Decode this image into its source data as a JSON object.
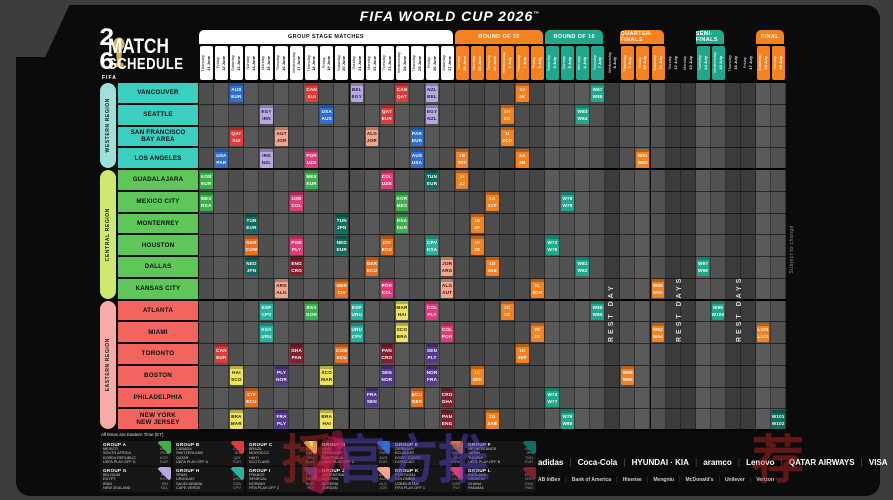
{
  "title": "FIFA WORLD CUP 2026",
  "title_tm": "™",
  "logo": {
    "digit_top": "2",
    "digit_bottom": "6",
    "fifa": "FIFA",
    "line1": "MATCH",
    "line2": "SCHEDULE"
  },
  "notes": {
    "times": "All times are Eastern Time (ET)",
    "subject": "Subject to change",
    "watermark_red": "播",
    "watermark_blue": "官方推",
    "watermark_red2": "荐"
  },
  "bands": [
    {
      "label": "GROUP STAGE MATCHES",
      "c0": 0,
      "c1": 16,
      "bg": "#ffffff",
      "fg": "#111111"
    },
    {
      "label": "ROUND OF 32",
      "c0": 17,
      "c1": 22,
      "bg": "#f5821f",
      "fg": "#ffffff"
    },
    {
      "label": "ROUND OF 16",
      "c0": 23,
      "c1": 26,
      "bg": "#1fa88c",
      "fg": "#ffffff"
    },
    {
      "label": "QUARTER-FINALS",
      "c0": 28,
      "c1": 30,
      "bg": "#f5821f",
      "fg": "#ffffff"
    },
    {
      "label": "SEMI-FINALS",
      "c0": 33,
      "c1": 34,
      "bg": "#1fa88c",
      "fg": "#ffffff"
    },
    {
      "label": "FINAL",
      "c0": 37,
      "c1": 38,
      "bg": "#f5821f",
      "fg": "#ffffff"
    }
  ],
  "columns": [
    {
      "day": "Thursday",
      "date": "11 June",
      "s": "GS"
    },
    {
      "day": "Friday",
      "date": "12 June",
      "s": "GS"
    },
    {
      "day": "Saturday",
      "date": "13 June",
      "s": "GS"
    },
    {
      "day": "Sunday",
      "date": "14 June",
      "s": "GS"
    },
    {
      "day": "Monday",
      "date": "15 June",
      "s": "GS"
    },
    {
      "day": "Tuesday",
      "date": "16 June",
      "s": "GS"
    },
    {
      "day": "Wednesday",
      "date": "17 June",
      "s": "GS"
    },
    {
      "day": "Thursday",
      "date": "18 June",
      "s": "GS"
    },
    {
      "day": "Friday",
      "date": "19 June",
      "s": "GS"
    },
    {
      "day": "Saturday",
      "date": "20 June",
      "s": "GS"
    },
    {
      "day": "Sunday",
      "date": "21 June",
      "s": "GS"
    },
    {
      "day": "Monday",
      "date": "22 June",
      "s": "GS"
    },
    {
      "day": "Tuesday",
      "date": "23 June",
      "s": "GS"
    },
    {
      "day": "Wednesday",
      "date": "24 June",
      "s": "GS"
    },
    {
      "day": "Thursday",
      "date": "25 June",
      "s": "GS"
    },
    {
      "day": "Friday",
      "date": "26 June",
      "s": "GS"
    },
    {
      "day": "Saturday",
      "date": "27 June",
      "s": "GS"
    },
    {
      "day": "Sunday",
      "date": "28 June",
      "s": "R32"
    },
    {
      "day": "Monday",
      "date": "29 June",
      "s": "R32"
    },
    {
      "day": "Tuesday",
      "date": "30 June",
      "s": "R32"
    },
    {
      "day": "Wednesday",
      "date": "1 July",
      "s": "R32"
    },
    {
      "day": "Thursday",
      "date": "2 July",
      "s": "R32"
    },
    {
      "day": "Friday",
      "date": "3 July",
      "s": "R32"
    },
    {
      "day": "Saturday",
      "date": "4 July",
      "s": "R16"
    },
    {
      "day": "Sunday",
      "date": "5 July",
      "s": "R16"
    },
    {
      "day": "Monday",
      "date": "6 July",
      "s": "R16"
    },
    {
      "day": "Tuesday",
      "date": "7 July",
      "s": "R16"
    },
    {
      "day": "Wednesday",
      "date": "8 July",
      "s": "REST"
    },
    {
      "day": "Thursday",
      "date": "9 July",
      "s": "QF"
    },
    {
      "day": "Friday",
      "date": "10 July",
      "s": "QF"
    },
    {
      "day": "Saturday",
      "date": "11 July",
      "s": "QF"
    },
    {
      "day": "Sunday",
      "date": "12 July",
      "s": "REST"
    },
    {
      "day": "Monday",
      "date": "13 July",
      "s": "REST"
    },
    {
      "day": "Tuesday",
      "date": "14 July",
      "s": "SF"
    },
    {
      "day": "Wednesday",
      "date": "15 July",
      "s": "SF"
    },
    {
      "day": "Thursday",
      "date": "16 July",
      "s": "REST"
    },
    {
      "day": "Friday",
      "date": "17 July",
      "s": "REST"
    },
    {
      "day": "Saturday",
      "date": "18 July",
      "s": "F"
    },
    {
      "day": "Sunday",
      "date": "19 July",
      "s": "F"
    }
  ],
  "rest_labels": [
    {
      "label": "REST DAY",
      "c0": 27,
      "c1": 27
    },
    {
      "label": "REST DAYS",
      "c0": 31,
      "c1": 32
    },
    {
      "label": "REST DAYS",
      "c0": 35,
      "c1": 36
    }
  ],
  "regions": [
    {
      "name": "WESTERN REGION",
      "tab": "#9fe0d8",
      "row": "#3ccfbf",
      "cities": [
        "VANCOUVER",
        "SEATTLE",
        "SAN FRANCISCO\nBAY AREA",
        "LOS ANGELES"
      ]
    },
    {
      "name": "CENTRAL REGION",
      "tab": "#cfe96e",
      "row": "#5fc75a",
      "cities": [
        "GUADALAJARA",
        "MEXICO CITY",
        "MONTERREY",
        "HOUSTON",
        "DALLAS",
        "KANSAS CITY"
      ]
    },
    {
      "name": "EASTERN REGION",
      "tab": "#f6aca6",
      "row": "#f2645d",
      "cities": [
        "ATLANTA",
        "MIAMI",
        "TORONTO",
        "BOSTON",
        "PHILADELPHIA",
        "NEW YORK\nNEW JERSEY"
      ]
    }
  ],
  "group_colors": {
    "A": [
      "#3cb04d",
      "#ffffff"
    ],
    "B": [
      "#e03a3a",
      "#ffffff"
    ],
    "C": [
      "#efe45e",
      "#26230a"
    ],
    "D": [
      "#2f6fd0",
      "#ffffff"
    ],
    "E": [
      "#e8711f",
      "#ffffff"
    ],
    "F": [
      "#0f6e5f",
      "#ffffff"
    ],
    "G": [
      "#b7a8e0",
      "#241a4a"
    ],
    "H": [
      "#28b3a0",
      "#ffffff"
    ],
    "I": [
      "#53398f",
      "#ffffff"
    ],
    "J": [
      "#f2a58f",
      "#3a1208"
    ],
    "K": [
      "#e23a7a",
      "#ffffff"
    ],
    "L": [
      "#7e2230",
      "#ffffff"
    ]
  },
  "stage_colors": {
    "R32": [
      "#f5821f",
      "#ffffff"
    ],
    "R16": [
      "#1fa88c",
      "#ffffff"
    ],
    "QF": [
      "#f5821f",
      "#ffffff"
    ],
    "SF": [
      "#1fa88c",
      "#ffffff"
    ],
    "F3": [
      "#f5821f",
      "#ffffff"
    ],
    "F": [
      "#c9a227",
      "#1b1402"
    ]
  },
  "matches": [
    [
      0,
      2,
      "D",
      "AUS",
      "EUR"
    ],
    [
      0,
      7,
      "B",
      "CAN",
      "SUI"
    ],
    [
      0,
      10,
      "G",
      "BEL",
      "EGY"
    ],
    [
      0,
      13,
      "B",
      "CAN",
      "QAT"
    ],
    [
      0,
      15,
      "G",
      "NZL",
      "BEL"
    ],
    [
      1,
      4,
      "G",
      "EGY",
      "IRN"
    ],
    [
      1,
      8,
      "D",
      "USA",
      "AUS"
    ],
    [
      1,
      12,
      "B",
      "QAT",
      "EUR"
    ],
    [
      1,
      15,
      "G",
      "EGY",
      "NZL"
    ],
    [
      2,
      2,
      "B",
      "QAT",
      "SUI"
    ],
    [
      2,
      5,
      "J",
      "AUT",
      "JOR"
    ],
    [
      2,
      11,
      "J",
      "ALG",
      "JOR"
    ],
    [
      2,
      14,
      "D",
      "PAR",
      "EUR"
    ],
    [
      3,
      1,
      "D",
      "USA",
      "PAR"
    ],
    [
      3,
      4,
      "G",
      "IRN",
      "NZL"
    ],
    [
      3,
      7,
      "K",
      "POR",
      "UZB"
    ],
    [
      3,
      14,
      "D",
      "AUS",
      "USA"
    ],
    [
      4,
      0,
      "A",
      "KOR",
      "EUR"
    ],
    [
      4,
      7,
      "A",
      "MEX",
      "EUR"
    ],
    [
      4,
      12,
      "K",
      "COL",
      "UZB"
    ],
    [
      4,
      15,
      "F",
      "TUN",
      "EUR"
    ],
    [
      5,
      0,
      "A",
      "MEX",
      "RSA"
    ],
    [
      5,
      6,
      "K",
      "UZB",
      "COL"
    ],
    [
      5,
      13,
      "A",
      "KOR",
      "MEX"
    ],
    [
      6,
      3,
      "F",
      "TUN",
      "EUR"
    ],
    [
      6,
      9,
      "F",
      "TUN",
      "JPN"
    ],
    [
      6,
      13,
      "A",
      "RSA",
      "EUR"
    ],
    [
      7,
      3,
      "E",
      "GER",
      "CUW"
    ],
    [
      7,
      6,
      "K",
      "POR",
      "PLY"
    ],
    [
      7,
      9,
      "F",
      "NED",
      "EUR"
    ],
    [
      7,
      12,
      "E",
      "CIV",
      "ECU"
    ],
    [
      7,
      15,
      "H",
      "CPV",
      "KSA"
    ],
    [
      8,
      3,
      "F",
      "NED",
      "JPN"
    ],
    [
      8,
      6,
      "L",
      "ENG",
      "CRO"
    ],
    [
      8,
      11,
      "E",
      "GER",
      "ECU"
    ],
    [
      8,
      16,
      "J",
      "JOR",
      "ARG"
    ],
    [
      9,
      5,
      "J",
      "ARG",
      "ALG"
    ],
    [
      9,
      9,
      "E",
      "GER",
      "CIV"
    ],
    [
      9,
      12,
      "K",
      "POR",
      "COL"
    ],
    [
      9,
      16,
      "J",
      "ALG",
      "AUT"
    ],
    [
      10,
      4,
      "H",
      "ESP",
      "CPV"
    ],
    [
      10,
      7,
      "A",
      "RSA",
      "KOR"
    ],
    [
      10,
      10,
      "H",
      "ESP",
      "URU"
    ],
    [
      10,
      13,
      "C",
      "MAR",
      "HAI"
    ],
    [
      10,
      15,
      "K",
      "COL",
      "PLY"
    ],
    [
      11,
      4,
      "H",
      "KSA",
      "URU"
    ],
    [
      11,
      10,
      "H",
      "URU",
      "CPV"
    ],
    [
      11,
      13,
      "C",
      "SCO",
      "BRA"
    ],
    [
      11,
      16,
      "K",
      "COL",
      "POR"
    ],
    [
      12,
      1,
      "B",
      "CAN",
      "EUR"
    ],
    [
      12,
      6,
      "L",
      "GHA",
      "PAN"
    ],
    [
      12,
      9,
      "E",
      "CUW",
      "ECU"
    ],
    [
      12,
      12,
      "L",
      "PAN",
      "CRO"
    ],
    [
      12,
      15,
      "I",
      "SEN",
      "PLY"
    ],
    [
      13,
      2,
      "C",
      "HAI",
      "SCO"
    ],
    [
      13,
      5,
      "I",
      "PLY",
      "NOR"
    ],
    [
      13,
      8,
      "C",
      "SCO",
      "MAR"
    ],
    [
      13,
      12,
      "I",
      "SEN",
      "NOR"
    ],
    [
      13,
      15,
      "I",
      "NOR",
      "FRA"
    ],
    [
      14,
      3,
      "E",
      "CIV",
      "ECU"
    ],
    [
      14,
      11,
      "I",
      "FRA",
      "SEN"
    ],
    [
      14,
      14,
      "E",
      "ECU",
      "GER"
    ],
    [
      14,
      16,
      "L",
      "CRO",
      "GHA"
    ],
    [
      15,
      2,
      "C",
      "BRA",
      "MAR"
    ],
    [
      15,
      5,
      "I",
      "FRA",
      "PLY"
    ],
    [
      15,
      8,
      "C",
      "BRA",
      "HAI"
    ],
    [
      15,
      16,
      "L",
      "PAN",
      "ENG"
    ],
    [
      3,
      17,
      "R32",
      "1B",
      "3EF"
    ],
    [
      4,
      17,
      "R32",
      "2I",
      "2J"
    ],
    [
      13,
      18,
      "R32",
      "1C",
      "3DE"
    ],
    [
      6,
      18,
      "R32",
      "1E",
      "2F"
    ],
    [
      7,
      18,
      "R32",
      "1F",
      "2E"
    ],
    [
      5,
      19,
      "R32",
      "1A",
      "3CF"
    ],
    [
      8,
      19,
      "R32",
      "1D",
      "3BE"
    ],
    [
      15,
      19,
      "R32",
      "1G",
      "3AB"
    ],
    [
      1,
      20,
      "R32",
      "1H",
      "2G"
    ],
    [
      2,
      20,
      "R32",
      "1I",
      "3CD"
    ],
    [
      10,
      20,
      "R32",
      "2C",
      "2D"
    ],
    [
      0,
      21,
      "R32",
      "1J",
      "2K"
    ],
    [
      3,
      21,
      "R32",
      "2A",
      "2B"
    ],
    [
      12,
      21,
      "R32",
      "1K",
      "3EF"
    ],
    [
      9,
      22,
      "R32",
      "1L",
      "3GH"
    ],
    [
      11,
      22,
      "R32",
      "2E",
      "2G"
    ],
    [
      14,
      23,
      "R16",
      "W74",
      "W77"
    ],
    [
      7,
      23,
      "R16",
      "W73",
      "W75"
    ],
    [
      5,
      24,
      "R16",
      "W76",
      "W78"
    ],
    [
      15,
      24,
      "R16",
      "W79",
      "W80"
    ],
    [
      8,
      25,
      "R16",
      "W81",
      "W82"
    ],
    [
      1,
      25,
      "R16",
      "W83",
      "W84"
    ],
    [
      10,
      26,
      "R16",
      "W85",
      "W86"
    ],
    [
      0,
      26,
      "R16",
      "W87",
      "W88"
    ],
    [
      13,
      28,
      "QF",
      "W89",
      "W90"
    ],
    [
      3,
      29,
      "QF",
      "W91",
      "W92"
    ],
    [
      11,
      30,
      "QF",
      "W93",
      "W94"
    ],
    [
      9,
      30,
      "QF",
      "W95",
      "W96"
    ],
    [
      8,
      33,
      "SF",
      "W97",
      "W98"
    ],
    [
      10,
      34,
      "SF",
      "W99",
      "W100"
    ],
    [
      11,
      37,
      "F3",
      "L101",
      "L102"
    ],
    [
      15,
      38,
      "F",
      "W101",
      "W102"
    ]
  ],
  "groups": [
    {
      "letter": "GROUP A",
      "color": "#3cb04d",
      "teams": [
        [
          "MEXICO",
          "MEX"
        ],
        [
          "SOUTH AFRICA",
          "RSA"
        ],
        [
          "KOREA REPUBLIC",
          "KOR"
        ],
        [
          "UEFA PLAY-OFF D",
          "EUR"
        ]
      ]
    },
    {
      "letter": "GROUP B",
      "color": "#e03a3a",
      "teams": [
        [
          "CANADA",
          "CAN"
        ],
        [
          "SWITZERLAND",
          "SUI"
        ],
        [
          "QATAR",
          "QAT"
        ],
        [
          "UEFA PLAY-OFF A",
          "EUR"
        ]
      ]
    },
    {
      "letter": "GROUP C",
      "color": "#efe45e",
      "teams": [
        [
          "BRAZIL",
          "BRA"
        ],
        [
          "MOROCCO",
          "MAR"
        ],
        [
          "HAITI",
          "HAI"
        ],
        [
          "SCOTLAND",
          "SCO"
        ]
      ]
    },
    {
      "letter": "GROUP D",
      "color": "#2f6fd0",
      "teams": [
        [
          "USA",
          "USA"
        ],
        [
          "PARAGUAY",
          "PAR"
        ],
        [
          "AUSTRALIA",
          "AUS"
        ],
        [
          "UEFA PLAY-OFF C",
          "EUR"
        ]
      ]
    },
    {
      "letter": "GROUP E",
      "color": "#e8711f",
      "teams": [
        [
          "GERMANY",
          "GER"
        ],
        [
          "ECUADOR",
          "ECU"
        ],
        [
          "IVORY COAST",
          "CIV"
        ],
        [
          "CURACAO",
          "CUW"
        ]
      ]
    },
    {
      "letter": "GROUP F",
      "color": "#0f6e5f",
      "teams": [
        [
          "NETHERLANDS",
          "NED"
        ],
        [
          "JAPAN",
          "JPN"
        ],
        [
          "TUNISIA",
          "TUN"
        ],
        [
          "UEFA PLAY-OFF B",
          "EUR"
        ]
      ]
    },
    {
      "letter": "GROUP G",
      "color": "#b7a8e0",
      "teams": [
        [
          "BELGIUM",
          "BEL"
        ],
        [
          "EGYPT",
          "EGY"
        ],
        [
          "IRAN",
          "IRN"
        ],
        [
          "NEW ZEALAND",
          "NZL"
        ]
      ]
    },
    {
      "letter": "GROUP H",
      "color": "#28b3a0",
      "teams": [
        [
          "SPAIN",
          "ESP"
        ],
        [
          "URUGUAY",
          "URU"
        ],
        [
          "SAUDI ARABIA",
          "KSA"
        ],
        [
          "CAPE VERDE",
          "CPV"
        ]
      ]
    },
    {
      "letter": "GROUP I",
      "color": "#53398f",
      "teams": [
        [
          "FRANCE",
          "FRA"
        ],
        [
          "SENEGAL",
          "SEN"
        ],
        [
          "NORWAY",
          "NOR"
        ],
        [
          "FIFA PLAY-OFF 2",
          "PLY"
        ]
      ]
    },
    {
      "letter": "GROUP J",
      "color": "#f2a58f",
      "teams": [
        [
          "ARGENTINA",
          "ARG"
        ],
        [
          "AUSTRIA",
          "AUT"
        ],
        [
          "ALGERIA",
          "ALG"
        ],
        [
          "JORDAN",
          "JOR"
        ]
      ]
    },
    {
      "letter": "GROUP K",
      "color": "#e23a7a",
      "teams": [
        [
          "PORTUGAL",
          "POR"
        ],
        [
          "COLOMBIA",
          "COL"
        ],
        [
          "UZBEKISTAN",
          "UZB"
        ],
        [
          "FIFA PLAY-OFF 1",
          "PLY"
        ]
      ]
    },
    {
      "letter": "GROUP L",
      "color": "#7e2230",
      "teams": [
        [
          "ENGLAND",
          "ENG"
        ],
        [
          "CROATIA",
          "CRO"
        ],
        [
          "GHANA",
          "GHA"
        ],
        [
          "PANAMA",
          "PAN"
        ]
      ]
    }
  ],
  "sponsors": {
    "primary": [
      "adidas",
      "Coca-Cola",
      "HYUNDAI · KIA",
      "aramco",
      "Lenovo",
      "QATAR AIRWAYS",
      "VISA"
    ],
    "secondary": [
      "AB InBev",
      "Bank of America",
      "Hisense",
      "Mengniu",
      "McDonald's",
      "Unilever",
      "Verizon"
    ]
  }
}
